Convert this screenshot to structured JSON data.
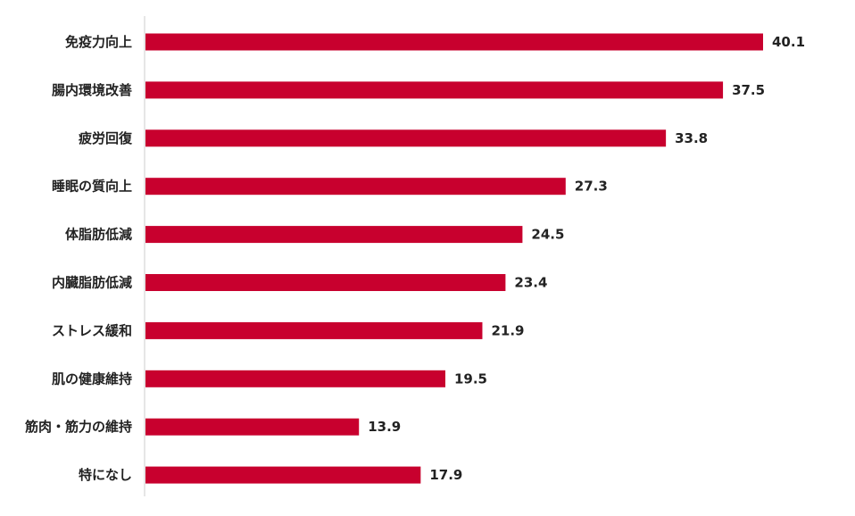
{
  "chart_data": {
    "type": "bar",
    "orientation": "horizontal",
    "categories": [
      "免疫力向上",
      "腸内環境改善",
      "疲労回復",
      "睡眠の質向上",
      "体脂肪低減",
      "内臓脂肪低減",
      "ストレス緩和",
      "肌の健康維持",
      "筋肉・筋力の維持",
      "特になし"
    ],
    "values": [
      40.1,
      37.5,
      33.8,
      27.3,
      24.5,
      23.4,
      21.9,
      19.5,
      13.9,
      17.9
    ],
    "value_labels": [
      "40.1",
      "37.5",
      "33.8",
      "27.3",
      "24.5",
      "23.4",
      "21.9",
      "19.5",
      "13.9",
      "17.9"
    ],
    "xlim": [
      0,
      40.1
    ],
    "grid": false,
    "legend": "none",
    "bar_color": "#c8002e",
    "axis_color": "#cccccc"
  }
}
